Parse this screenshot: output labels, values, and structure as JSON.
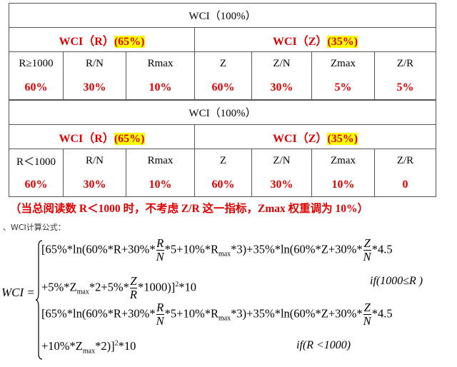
{
  "tables": [
    {
      "title": "WCI（100%）",
      "groups": [
        {
          "label": "WCI（R）",
          "pct": "(65%)"
        },
        {
          "label": "WCI（Z）",
          "pct": "(35%)"
        }
      ],
      "headers": [
        "R≥1000",
        "R/N",
        "Rmax",
        "Z",
        "Z/N",
        "Zmax",
        "Z/R"
      ],
      "values": [
        "60%",
        "30%",
        "10%",
        "60%",
        "30%",
        "5%",
        "5%"
      ]
    },
    {
      "title": "WCI（100%）",
      "groups": [
        {
          "label": "WCI（R）",
          "pct": "(65%)"
        },
        {
          "label": "WCI（Z）",
          "pct": "(35%)"
        }
      ],
      "headers": [
        "R＜1000",
        "R/N",
        "Rmax",
        "Z",
        "Z/N",
        "Zmax",
        "Z/R"
      ],
      "values": [
        "60%",
        "30%",
        "10%",
        "60%",
        "30%",
        "10%",
        "0"
      ]
    }
  ],
  "note": "（当总阅读数 R＜1000 时，不考虑 Z/R 这一指标，Zmax 权重调为 10%）",
  "formula_heading": "、WCI计算公式：",
  "formula": {
    "lhs": "WCI =",
    "lines": [
      {
        "parts": [
          "[65%*ln(60%*R+30%*",
          {
            "num": "R",
            "den": "N"
          },
          "*5+10%*R",
          {
            "sub": "max"
          },
          "*3)+35%*ln(60%*Z+30%*",
          {
            "num": "Z",
            "den": "N"
          },
          "*4.5"
        ]
      },
      {
        "parts": [
          "+5%*Z",
          {
            "sub": "max"
          },
          "*2+5%*",
          {
            "num": "Z",
            "den": "R"
          },
          "*1000)]",
          {
            "sup": "2"
          },
          "*10"
        ],
        "condition": "if(1000≤R )"
      },
      {
        "parts": [
          "[65%*ln(60%*R+30%*",
          {
            "num": "R",
            "den": "N"
          },
          "*5+10%*R",
          {
            "sub": "max"
          },
          "*3)+35%*ln(60%*Z+30%*",
          {
            "num": "Z",
            "den": "N"
          },
          "*4.5"
        ]
      },
      {
        "parts": [
          "+10%*Z",
          {
            "sub": "max"
          },
          "*2)]",
          {
            "sup": "2"
          },
          "*10"
        ],
        "condition": "if(R <1000)"
      }
    ]
  }
}
